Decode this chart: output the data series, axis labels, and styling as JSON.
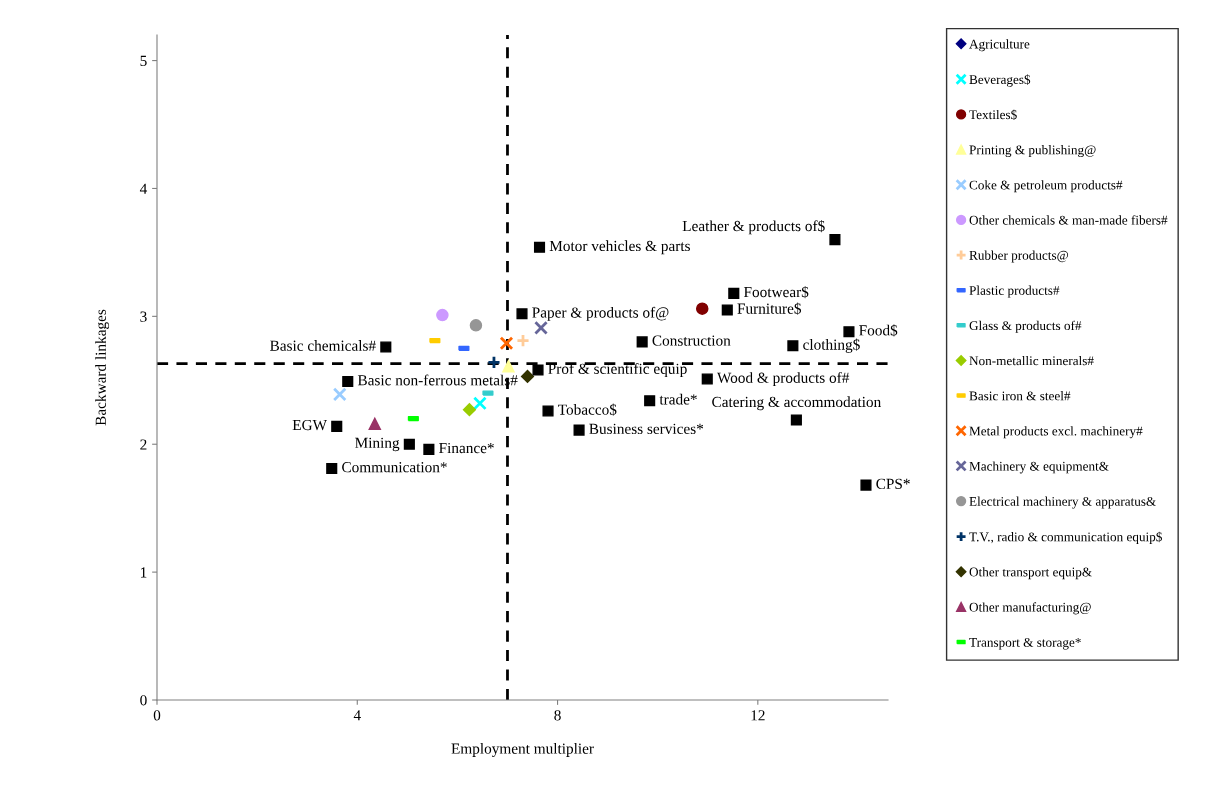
{
  "chart_data": {
    "type": "scatter",
    "xlabel": "Employment multiplier",
    "ylabel": "Backward linkages",
    "xlim": [
      0,
      14.6
    ],
    "ylim": [
      0,
      5.2
    ],
    "xticks": [
      0,
      4,
      8,
      12
    ],
    "yticks": [
      0,
      1,
      2,
      3,
      4,
      5
    ],
    "grid": false,
    "legend": "right",
    "ref_lines": [
      {
        "axis": "x",
        "value": 7.0,
        "color": "#000000",
        "line_style": "dashed"
      },
      {
        "axis": "y",
        "value": 2.63,
        "color": "#000000",
        "line_style": "dashed"
      }
    ],
    "series": [
      {
        "name": "Agriculture",
        "color": "#000080",
        "marker": "diamond",
        "x": [
          null
        ],
        "values": [
          null
        ]
      },
      {
        "name": "Beverages$",
        "color": "#00ffff",
        "marker": "cross",
        "x": [
          6.45
        ],
        "values": [
          2.32
        ]
      },
      {
        "name": "Textiles$",
        "color": "#800000",
        "marker": "circle",
        "x": [
          10.89
        ],
        "values": [
          3.06
        ]
      },
      {
        "name": "Printing & publishing@",
        "color": "#ffff99",
        "marker": "triangle",
        "x": [
          7.02
        ],
        "values": [
          2.61
        ]
      },
      {
        "name": "Coke & petroleum products#",
        "color": "#99ccff",
        "marker": "cross",
        "x": [
          3.65
        ],
        "values": [
          2.39
        ]
      },
      {
        "name": "Other chemicals & man-made fibers#",
        "color": "#cc99ff",
        "marker": "circle",
        "x": [
          5.7
        ],
        "values": [
          3.01
        ]
      },
      {
        "name": "Rubber products@",
        "color": "#ffcc99",
        "marker": "plus",
        "x": [
          7.31
        ],
        "values": [
          2.81
        ]
      },
      {
        "name": "Plastic products#",
        "color": "#3366ff",
        "marker": "square",
        "x": [
          6.13
        ],
        "values": [
          2.75
        ]
      },
      {
        "name": "Glass & products of#",
        "color": "#33cccc",
        "marker": "square",
        "x": [
          6.61
        ],
        "values": [
          2.4
        ]
      },
      {
        "name": "Non-metallic minerals#",
        "color": "#99cc00",
        "marker": "diamond",
        "x": [
          6.24
        ],
        "values": [
          2.27
        ]
      },
      {
        "name": "Basic iron & steel#",
        "color": "#ffcc00",
        "marker": "square",
        "x": [
          5.55
        ],
        "values": [
          2.81
        ]
      },
      {
        "name": "Metal products excl. machinery#",
        "color": "#ff6600",
        "marker": "cross",
        "x": [
          6.98
        ],
        "values": [
          2.79
        ]
      },
      {
        "name": "Machinery & equipment&",
        "color": "#666699",
        "marker": "cross",
        "x": [
          7.67
        ],
        "values": [
          2.91
        ]
      },
      {
        "name": "Electrical machinery & apparatus&",
        "color": "#969696",
        "marker": "circle",
        "x": [
          6.37
        ],
        "values": [
          2.93
        ]
      },
      {
        "name": "T.V., radio & communication equip$",
        "color": "#003366",
        "marker": "plus",
        "x": [
          6.73
        ],
        "values": [
          2.64
        ]
      },
      {
        "name": "Other transport equip&",
        "color": "#333300",
        "marker": "diamond",
        "x": [
          7.4
        ],
        "values": [
          2.53
        ]
      },
      {
        "name": "Other manufacturing@",
        "color": "#993366",
        "marker": "triangle",
        "x": [
          4.35
        ],
        "values": [
          2.16
        ]
      },
      {
        "name": "Transport & storage*",
        "color": "#00ff00",
        "marker": "square",
        "x": [
          5.12
        ],
        "values": [
          2.2
        ]
      },
      {
        "color": "#000000",
        "marker": "square",
        "x": [
          7.64,
          7.29,
          4.57,
          7.61,
          3.81,
          3.59,
          5.04,
          5.43,
          3.49,
          7.81,
          13.54,
          11.52,
          11.39,
          13.82,
          9.69,
          12.7,
          10.99,
          9.84,
          8.43,
          12.77,
          14.16
        ],
        "values": [
          3.54,
          3.02,
          2.76,
          2.58,
          2.49,
          2.14,
          2.0,
          1.96,
          1.81,
          2.26,
          3.6,
          3.18,
          3.05,
          2.88,
          2.8,
          2.77,
          2.51,
          2.34,
          2.11,
          2.19,
          1.68
        ]
      }
    ],
    "annotations": [
      {
        "text": "Motor vehicles & parts",
        "x": 7.64,
        "y": 3.54
      },
      {
        "text": "Paper & products of@",
        "x": 7.29,
        "y": 3.02
      },
      {
        "text": "Basic chemicals#",
        "x": 4.57,
        "y": 2.76
      },
      {
        "text": "Prof & scientific equip",
        "x": 7.61,
        "y": 2.58
      },
      {
        "text": "Basic non-ferrous metals#",
        "x": 3.81,
        "y": 2.49
      },
      {
        "text": "EGW",
        "x": 3.59,
        "y": 2.14
      },
      {
        "text": "Mining",
        "x": 5.04,
        "y": 2.0
      },
      {
        "text": "Finance*",
        "x": 5.43,
        "y": 1.96
      },
      {
        "text": "Communication*",
        "x": 3.49,
        "y": 1.81
      },
      {
        "text": "Tobacco$",
        "x": 7.81,
        "y": 2.26
      },
      {
        "text": "Leather & products of$",
        "x": 13.54,
        "y": 3.6
      },
      {
        "text": "Footwear$",
        "x": 11.52,
        "y": 3.18
      },
      {
        "text": "Furniture$",
        "x": 11.39,
        "y": 3.05
      },
      {
        "text": "Food$",
        "x": 13.82,
        "y": 2.88
      },
      {
        "text": "Construction",
        "x": 9.69,
        "y": 2.8
      },
      {
        "text": "clothing$",
        "x": 12.7,
        "y": 2.77
      },
      {
        "text": "Wood & products of#",
        "x": 10.99,
        "y": 2.51
      },
      {
        "text": "trade*",
        "x": 9.84,
        "y": 2.34
      },
      {
        "text": "Business services*",
        "x": 8.43,
        "y": 2.11
      },
      {
        "text": "Catering & accommodation",
        "x": 12.77,
        "y": 2.19
      },
      {
        "text": "CPS*",
        "x": 14.16,
        "y": 1.68
      }
    ]
  }
}
